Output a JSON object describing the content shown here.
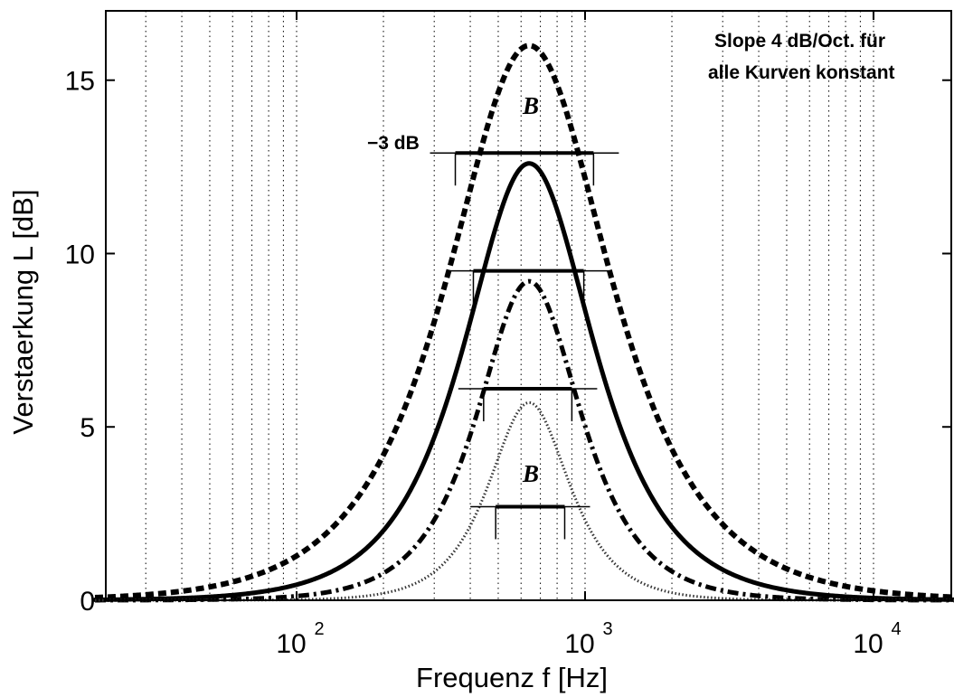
{
  "chart_data": {
    "type": "line",
    "xlabel": "Frequenz f [Hz]",
    "ylabel": "Verstaerkung L [dB]",
    "xscale": "log",
    "xlim": [
      20,
      20000
    ],
    "ylim": [
      0,
      17
    ],
    "grid": "x-only dotted",
    "yticks": [
      {
        "value": 0,
        "label": "0"
      },
      {
        "value": 5,
        "label": "5"
      },
      {
        "value": 10,
        "label": "10"
      },
      {
        "value": 15,
        "label": "15"
      }
    ],
    "xticks": [
      {
        "value": 100,
        "base": "10",
        "exp": "2"
      },
      {
        "value": 1000,
        "base": "10",
        "exp": "3"
      },
      {
        "value": 10000,
        "base": "10",
        "exp": "4"
      }
    ],
    "annotation": {
      "line1": "Slope 4 dB/Oct. für",
      "line2": "alle Kurven konstant"
    },
    "db_label": "−3 dB",
    "bandwidth_label": "B",
    "series": [
      {
        "style": "dashed",
        "peak_freq": 640,
        "peak_db": 16.0,
        "bandwidth_hz": [
          355,
          1070
        ],
        "level_db": 12.9
      },
      {
        "style": "solid",
        "peak_freq": 640,
        "peak_db": 12.6,
        "bandwidth_hz": [
          410,
          990
        ],
        "level_db": 9.5
      },
      {
        "style": "dash-dot",
        "peak_freq": 640,
        "peak_db": 9.2,
        "bandwidth_hz": [
          445,
          900
        ],
        "level_db": 6.1
      },
      {
        "style": "dotted",
        "peak_freq": 640,
        "peak_db": 5.7,
        "bandwidth_hz": [
          490,
          850
        ],
        "level_db": 2.7
      }
    ]
  }
}
